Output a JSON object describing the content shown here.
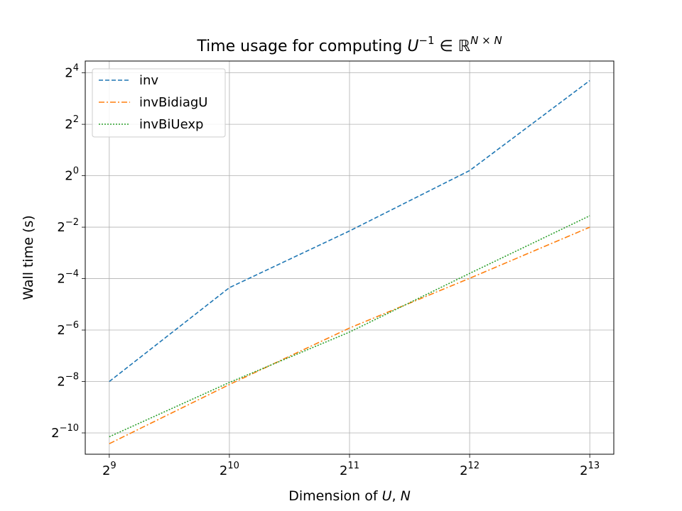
{
  "chart_data": {
    "type": "line",
    "title": {
      "text": "Time usage for computing ",
      "math_base": "U",
      "math_sup": "−1",
      "math_in": " ∈ ",
      "math_set": "ℝ",
      "math_set_sup": "N × N"
    },
    "xlabel": {
      "text": "Dimension of ",
      "var1": "U",
      "sep": ", ",
      "var2": "N"
    },
    "ylabel": "Wall time (s)",
    "x_scale": "log2",
    "y_scale": "log2",
    "xlim": [
      0.8,
      1.1
    ],
    "ylim": [
      0.00055,
      22
    ],
    "grid": true,
    "legend_position": "upper-left",
    "x_ticks": [
      {
        "value": 512,
        "base": "2",
        "exp": "9"
      },
      {
        "value": 1024,
        "base": "2",
        "exp": "10"
      },
      {
        "value": 2048,
        "base": "2",
        "exp": "11"
      },
      {
        "value": 4096,
        "base": "2",
        "exp": "12"
      },
      {
        "value": 8192,
        "base": "2",
        "exp": "13"
      }
    ],
    "y_ticks": [
      {
        "value": 0.0009765625,
        "base": "2",
        "exp": "−10"
      },
      {
        "value": 0.00390625,
        "base": "2",
        "exp": "−8"
      },
      {
        "value": 0.015625,
        "base": "2",
        "exp": "−6"
      },
      {
        "value": 0.0625,
        "base": "2",
        "exp": "−4"
      },
      {
        "value": 0.25,
        "base": "2",
        "exp": "−2"
      },
      {
        "value": 1,
        "base": "2",
        "exp": "0"
      },
      {
        "value": 4,
        "base": "2",
        "exp": "2"
      },
      {
        "value": 16,
        "base": "2",
        "exp": "4"
      }
    ],
    "x": [
      512,
      1024,
      2048,
      4096,
      8192
    ],
    "series": [
      {
        "name": "inv",
        "color": "#1f77b4",
        "dash": "6,3",
        "values": [
          0.0039,
          0.049,
          0.226,
          1.15,
          13.0
        ]
      },
      {
        "name": "invBidiagU",
        "color": "#ff7f0e",
        "dash": "8,3,2,3",
        "values": [
          0.00073,
          0.0036,
          0.0165,
          0.063,
          0.25
        ]
      },
      {
        "name": "invBiUexp",
        "color": "#2ca02c",
        "dash": "2,2",
        "values": [
          0.00088,
          0.0038,
          0.0148,
          0.072,
          0.34
        ]
      }
    ]
  }
}
